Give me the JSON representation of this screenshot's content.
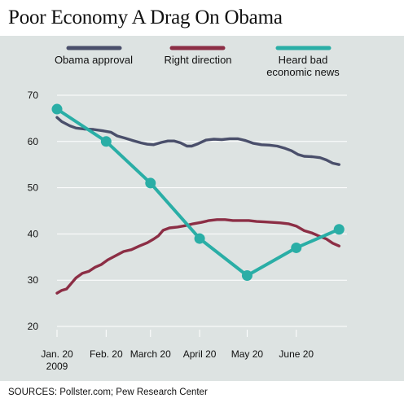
{
  "colors": {
    "panel_bg": "#dde3e2",
    "grid": "#ffffff",
    "obama": "#4a4f6b",
    "right_direction": "#8c2e45",
    "bad_news": "#2aaea6"
  },
  "chart_data": {
    "type": "line",
    "title": "Poor Economy A Drag On Obama",
    "source": "SOURCES: Pollster.com; Pew Research Center",
    "ylim": [
      20,
      70
    ],
    "yticks": [
      "20",
      "30",
      "40",
      "50",
      "60",
      "70"
    ],
    "xlim": [
      "2009-01-20",
      "2009-07-22"
    ],
    "xticks": [
      {
        "date": "2009-01-20",
        "label": "Jan. 20",
        "label2": "2009"
      },
      {
        "date": "2009-02-20",
        "label": "Feb. 20",
        "label2": ""
      },
      {
        "date": "2009-03-20",
        "label": "March 20",
        "label2": ""
      },
      {
        "date": "2009-04-20",
        "label": "April 20",
        "label2": ""
      },
      {
        "date": "2009-05-20",
        "label": "May 20",
        "label2": ""
      },
      {
        "date": "2009-06-20",
        "label": "June 20",
        "label2": ""
      }
    ],
    "grid": true,
    "legend_position": "top",
    "series": [
      {
        "name": "Obama approval",
        "markers": false,
        "points": [
          [
            "2009-01-20",
            65.2
          ],
          [
            "2009-01-23",
            64.3
          ],
          [
            "2009-01-28",
            63.4
          ],
          [
            "2009-02-01",
            62.9
          ],
          [
            "2009-02-06",
            62.7
          ],
          [
            "2009-02-12",
            62.6
          ],
          [
            "2009-02-18",
            62.3
          ],
          [
            "2009-02-23",
            62.0
          ],
          [
            "2009-02-27",
            61.2
          ],
          [
            "2009-03-04",
            60.7
          ],
          [
            "2009-03-09",
            60.2
          ],
          [
            "2009-03-14",
            59.7
          ],
          [
            "2009-03-18",
            59.4
          ],
          [
            "2009-03-22",
            59.3
          ],
          [
            "2009-03-27",
            59.8
          ],
          [
            "2009-03-31",
            60.1
          ],
          [
            "2009-04-04",
            60.1
          ],
          [
            "2009-04-08",
            59.7
          ],
          [
            "2009-04-12",
            59.0
          ],
          [
            "2009-04-15",
            59.0
          ],
          [
            "2009-04-19",
            59.5
          ],
          [
            "2009-04-24",
            60.3
          ],
          [
            "2009-04-29",
            60.5
          ],
          [
            "2009-05-04",
            60.4
          ],
          [
            "2009-05-09",
            60.6
          ],
          [
            "2009-05-14",
            60.6
          ],
          [
            "2009-05-19",
            60.2
          ],
          [
            "2009-05-24",
            59.6
          ],
          [
            "2009-05-29",
            59.3
          ],
          [
            "2009-06-03",
            59.2
          ],
          [
            "2009-06-08",
            59.0
          ],
          [
            "2009-06-13",
            58.5
          ],
          [
            "2009-06-17",
            58.0
          ],
          [
            "2009-06-21",
            57.2
          ],
          [
            "2009-06-25",
            56.8
          ],
          [
            "2009-06-30",
            56.7
          ],
          [
            "2009-07-05",
            56.5
          ],
          [
            "2009-07-09",
            56.0
          ],
          [
            "2009-07-13",
            55.3
          ],
          [
            "2009-07-17",
            55.0
          ]
        ]
      },
      {
        "name": "Right direction",
        "markers": false,
        "points": [
          [
            "2009-01-20",
            27.2
          ],
          [
            "2009-01-23",
            27.8
          ],
          [
            "2009-01-26",
            28.1
          ],
          [
            "2009-01-29",
            29.3
          ],
          [
            "2009-02-01",
            30.5
          ],
          [
            "2009-02-05",
            31.5
          ],
          [
            "2009-02-09",
            31.9
          ],
          [
            "2009-02-13",
            32.8
          ],
          [
            "2009-02-17",
            33.4
          ],
          [
            "2009-02-21",
            34.4
          ],
          [
            "2009-02-26",
            35.3
          ],
          [
            "2009-03-03",
            36.2
          ],
          [
            "2009-03-08",
            36.6
          ],
          [
            "2009-03-13",
            37.4
          ],
          [
            "2009-03-18",
            38.1
          ],
          [
            "2009-03-22",
            38.9
          ],
          [
            "2009-03-25",
            39.6
          ],
          [
            "2009-03-28",
            40.8
          ],
          [
            "2009-04-01",
            41.3
          ],
          [
            "2009-04-06",
            41.5
          ],
          [
            "2009-04-11",
            41.8
          ],
          [
            "2009-04-16",
            42.2
          ],
          [
            "2009-04-21",
            42.5
          ],
          [
            "2009-04-26",
            42.9
          ],
          [
            "2009-05-01",
            43.1
          ],
          [
            "2009-05-06",
            43.1
          ],
          [
            "2009-05-11",
            42.9
          ],
          [
            "2009-05-16",
            42.9
          ],
          [
            "2009-05-21",
            42.9
          ],
          [
            "2009-05-26",
            42.7
          ],
          [
            "2009-05-31",
            42.6
          ],
          [
            "2009-06-05",
            42.5
          ],
          [
            "2009-06-10",
            42.4
          ],
          [
            "2009-06-15",
            42.2
          ],
          [
            "2009-06-20",
            41.7
          ],
          [
            "2009-06-25",
            40.7
          ],
          [
            "2009-06-30",
            40.2
          ],
          [
            "2009-07-04",
            39.6
          ],
          [
            "2009-07-09",
            38.9
          ],
          [
            "2009-07-13",
            38.0
          ],
          [
            "2009-07-17",
            37.4
          ]
        ]
      },
      {
        "name": "Heard bad economic news",
        "markers": true,
        "points": [
          [
            "2009-01-20",
            67
          ],
          [
            "2009-02-20",
            60
          ],
          [
            "2009-03-20",
            51
          ],
          [
            "2009-04-20",
            39
          ],
          [
            "2009-05-20",
            31
          ],
          [
            "2009-06-20",
            37
          ],
          [
            "2009-07-17",
            41
          ]
        ]
      }
    ],
    "legend": [
      {
        "line1": "Obama approval",
        "line2": ""
      },
      {
        "line1": "Right direction",
        "line2": ""
      },
      {
        "line1": "Heard bad",
        "line2": "economic news"
      }
    ]
  }
}
